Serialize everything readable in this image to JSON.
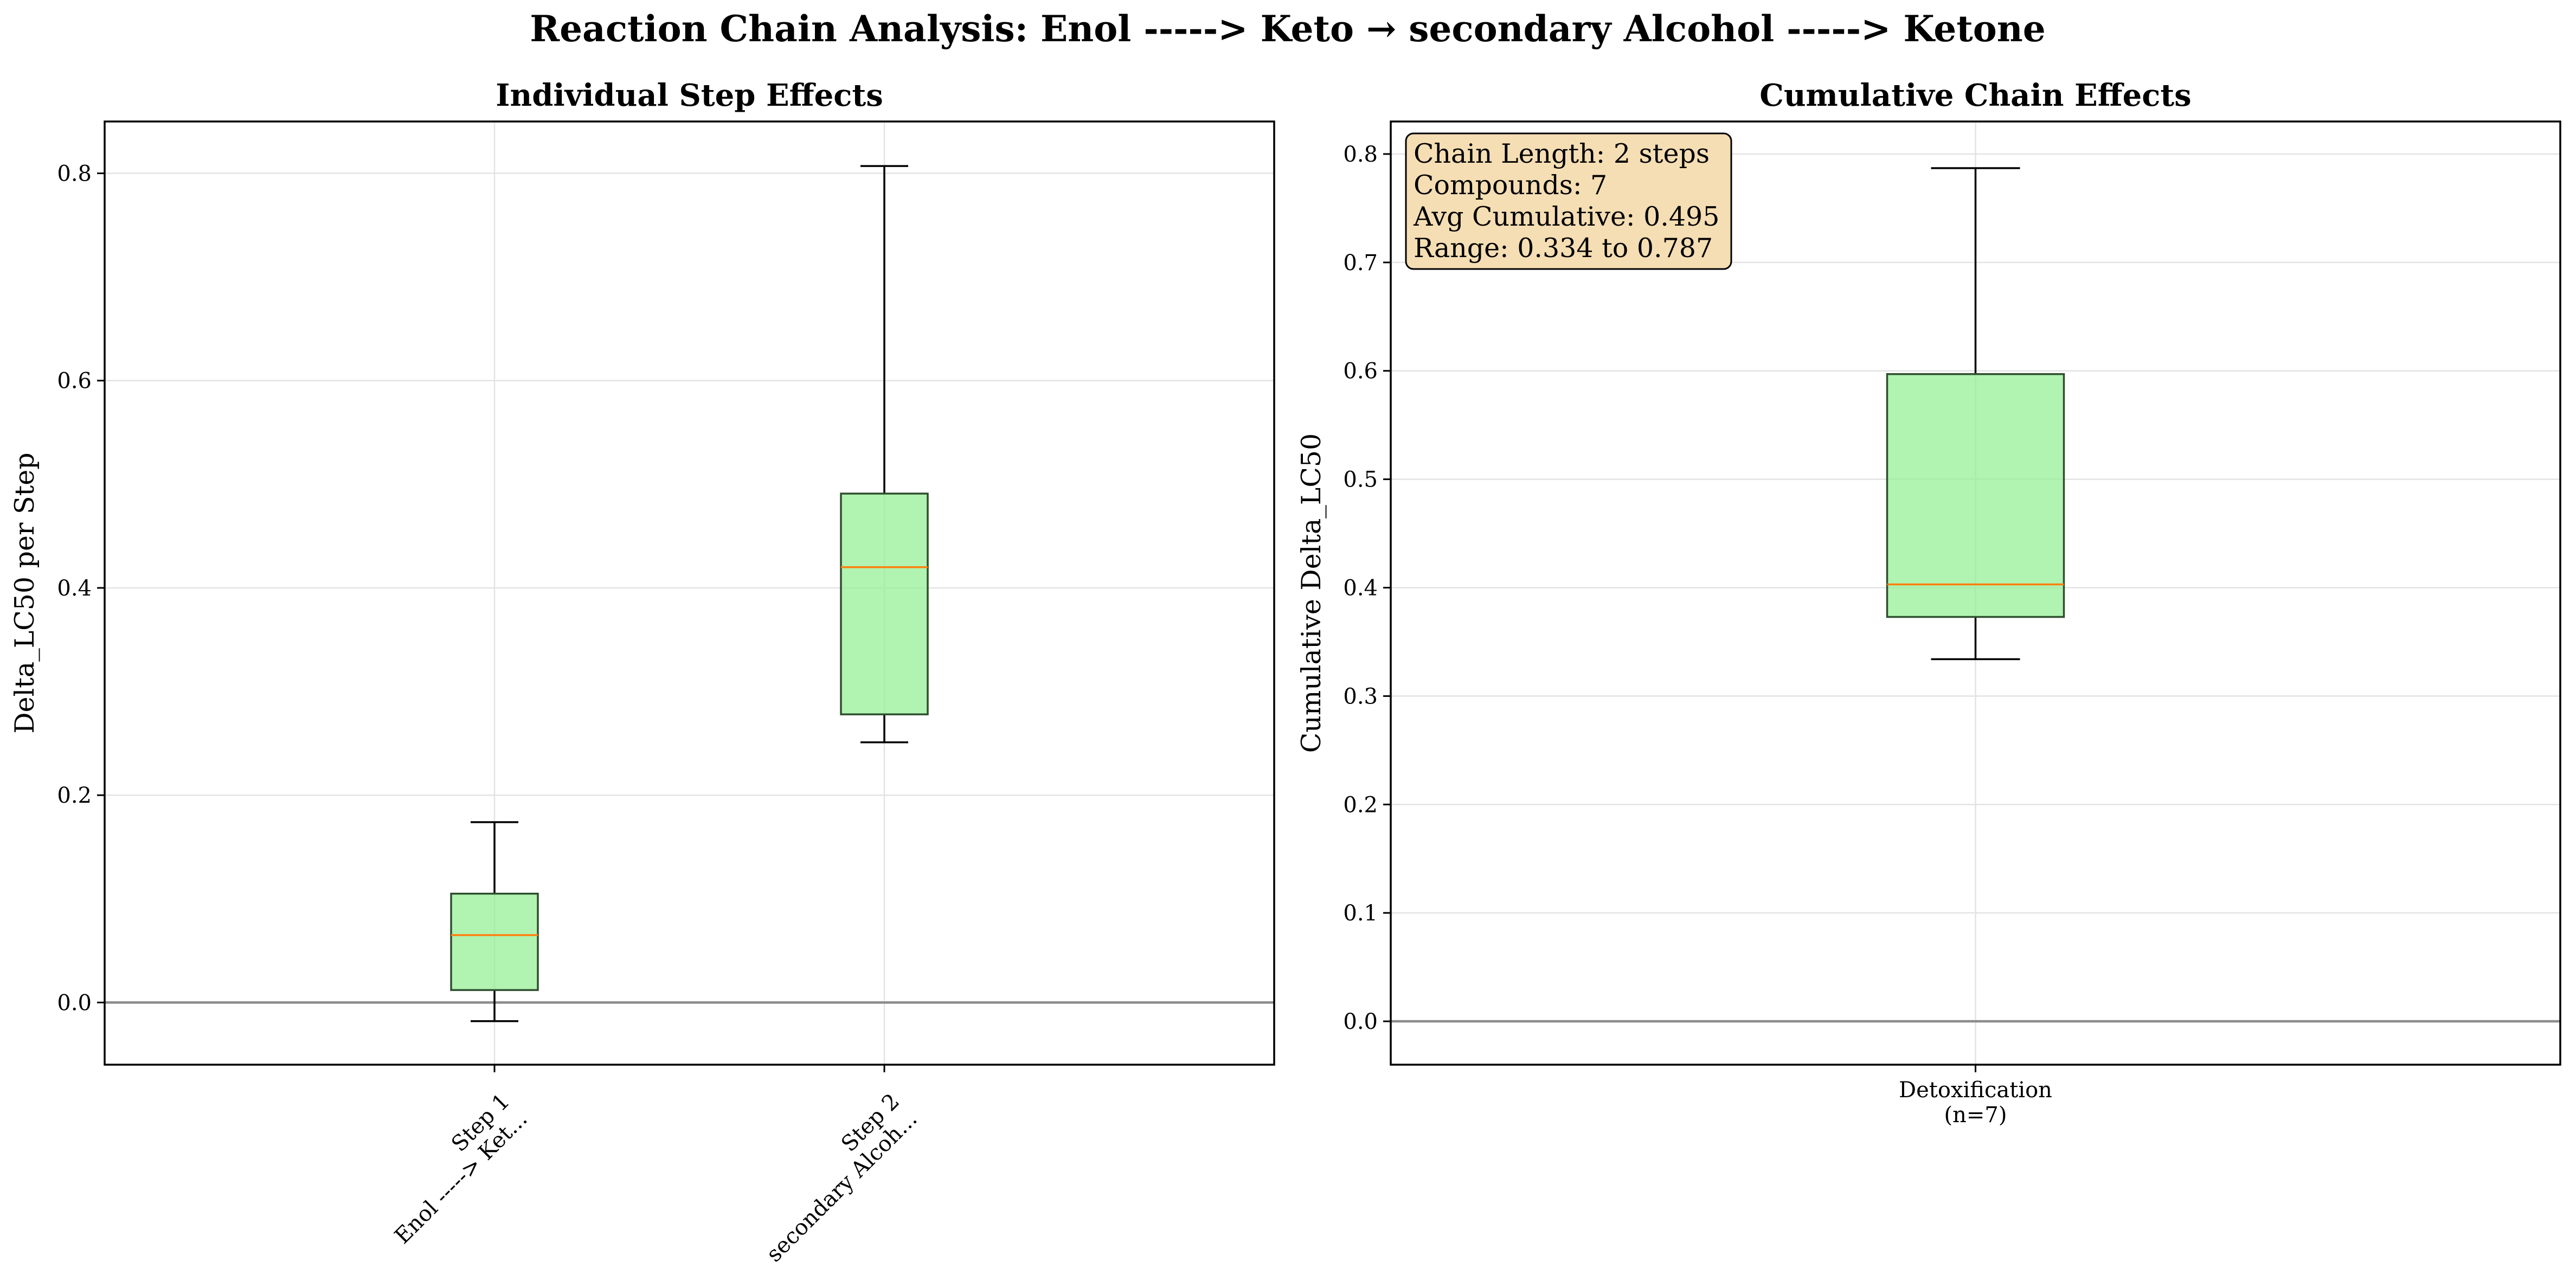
{
  "chart_data": [
    {
      "type": "box",
      "title": "Individual Step Effects",
      "xlabel": "",
      "ylabel": "Delta_LC50 per Step",
      "ylim": [
        -0.06,
        0.85
      ],
      "yticks": [
        0.0,
        0.2,
        0.4,
        0.6,
        0.8
      ],
      "ytick_labels": [
        "0.0",
        "0.2",
        "0.4",
        "0.6",
        "0.8"
      ],
      "zero_line": 0.0,
      "grid": true,
      "categories": [
        "Step 1\nEnol -----> Ket...",
        "Step 2\nsecondary Alcoh..."
      ],
      "boxes": [
        {
          "whisker_low": -0.018,
          "q1": 0.012,
          "median": 0.065,
          "q3": 0.105,
          "whisker_high": 0.174
        },
        {
          "whisker_low": 0.251,
          "q1": 0.278,
          "median": 0.42,
          "q3": 0.491,
          "whisker_high": 0.807
        }
      ],
      "box_color": "#90ee90",
      "median_color": "#ff7f0e"
    },
    {
      "type": "box",
      "title": "Cumulative Chain Effects",
      "xlabel": "",
      "ylabel": "Cumulative Delta_LC50",
      "ylim": [
        -0.04,
        0.83
      ],
      "yticks": [
        0.0,
        0.1,
        0.2,
        0.3,
        0.4,
        0.5,
        0.6,
        0.7,
        0.8
      ],
      "ytick_labels": [
        "0.0",
        "0.1",
        "0.2",
        "0.3",
        "0.4",
        "0.5",
        "0.6",
        "0.7",
        "0.8"
      ],
      "zero_line": 0.0,
      "grid": true,
      "categories": [
        "Detoxification\n(n=7)"
      ],
      "boxes": [
        {
          "whisker_low": 0.334,
          "q1": 0.373,
          "median": 0.403,
          "q3": 0.597,
          "whisker_high": 0.787
        }
      ],
      "box_color": "#90ee90",
      "median_color": "#ff7f0e",
      "annotation": [
        "Chain Length: 2 steps",
        "Compounds: 7",
        "Avg Cumulative: 0.495",
        "Range: 0.334 to 0.787"
      ]
    }
  ],
  "suptitle": "Reaction Chain Analysis: Enol -----> Keto → secondary Alcohol -----> Ketone"
}
